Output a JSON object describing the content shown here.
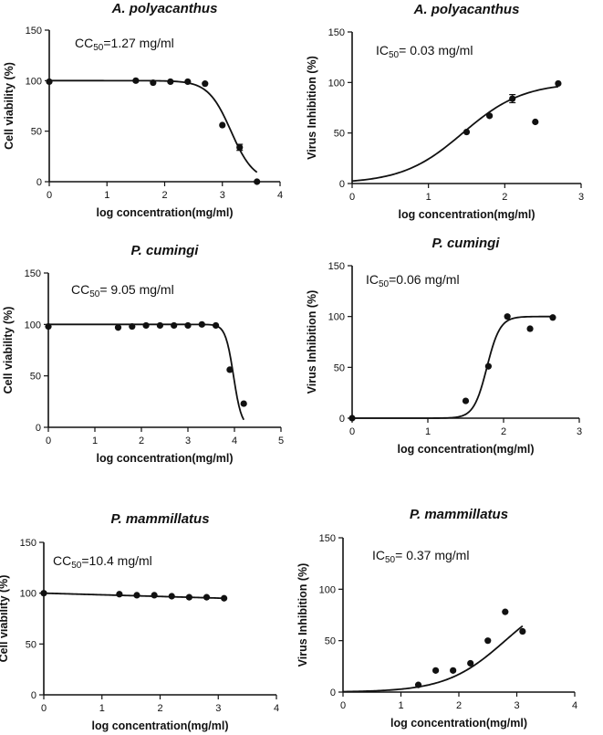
{
  "chart_data": [
    {
      "type": "scatter",
      "panel": "top-left",
      "title": "A. polyacanthus",
      "xlabel": "log concentration(mg/ml)",
      "ylabel": "Cell viability (%)",
      "xlim": [
        0,
        4
      ],
      "ylim": [
        0,
        150
      ],
      "xticks": [
        0,
        1,
        2,
        3,
        4
      ],
      "yticks": [
        0,
        50,
        100,
        150
      ],
      "annotation": {
        "prefix": "CC",
        "sub": "50",
        "text": "=1.27 mg/ml"
      },
      "points": [
        {
          "x": 0,
          "y": 99
        },
        {
          "x": 1.5,
          "y": 100
        },
        {
          "x": 1.8,
          "y": 98
        },
        {
          "x": 2.1,
          "y": 99
        },
        {
          "x": 2.4,
          "y": 99
        },
        {
          "x": 2.7,
          "y": 97
        },
        {
          "x": 3.0,
          "y": 56
        },
        {
          "x": 3.3,
          "y": 34,
          "err": 3
        },
        {
          "x": 3.6,
          "y": 0
        }
      ],
      "fit": {
        "model": "descending",
        "top": 100,
        "bottom": 0,
        "logx50": 3.15,
        "hill": 2.2,
        "xmin": 0,
        "xmax": 3.6
      }
    },
    {
      "type": "scatter",
      "panel": "top-right",
      "title": "A. polyacanthus",
      "xlabel": "log concentration(mg/ml)",
      "ylabel": "Virus Inhibition (%)",
      "xlim": [
        0,
        3
      ],
      "ylim": [
        0,
        150
      ],
      "xticks": [
        0,
        1,
        2,
        3
      ],
      "yticks": [
        0,
        50,
        100,
        150
      ],
      "annotation": {
        "prefix": "IC",
        "sub": "50",
        "text": "= 0.03 mg/ml"
      },
      "points": [
        {
          "x": 1.5,
          "y": 51
        },
        {
          "x": 1.8,
          "y": 67
        },
        {
          "x": 2.1,
          "y": 84,
          "err": 4
        },
        {
          "x": 2.4,
          "y": 61
        },
        {
          "x": 2.7,
          "y": 99
        }
      ],
      "fit": {
        "model": "ascending",
        "top": 100,
        "bottom": 0,
        "logx50": 1.45,
        "hill": 1.1,
        "xmin": 0,
        "xmax": 2.7
      }
    },
    {
      "type": "scatter",
      "panel": "middle-left",
      "title": "P. cumingi",
      "xlabel": "log concentration(mg/ml)",
      "ylabel": "Cell viability (%)",
      "xlim": [
        0,
        5
      ],
      "ylim": [
        0,
        150
      ],
      "xticks": [
        0,
        1,
        2,
        3,
        4,
        5
      ],
      "yticks": [
        0,
        50,
        100,
        150
      ],
      "annotation": {
        "prefix": "CC",
        "sub": "50",
        "text": "= 9.05 mg/ml"
      },
      "points": [
        {
          "x": 0,
          "y": 98
        },
        {
          "x": 1.5,
          "y": 97
        },
        {
          "x": 1.8,
          "y": 98
        },
        {
          "x": 2.1,
          "y": 99
        },
        {
          "x": 2.4,
          "y": 99
        },
        {
          "x": 2.7,
          "y": 99
        },
        {
          "x": 3.0,
          "y": 99
        },
        {
          "x": 3.3,
          "y": 100
        },
        {
          "x": 3.6,
          "y": 99
        },
        {
          "x": 3.9,
          "y": 56
        },
        {
          "x": 4.2,
          "y": 23
        }
      ],
      "fit": {
        "model": "descending",
        "top": 100,
        "bottom": 0,
        "logx50": 3.98,
        "hill": 5,
        "xmin": 0,
        "xmax": 4.2
      }
    },
    {
      "type": "scatter",
      "panel": "middle-right",
      "title": "P. cumingi",
      "xlabel": "log concentration(mg/ml)",
      "ylabel": "Virus Inhibition (%)",
      "xlim": [
        0,
        3
      ],
      "ylim": [
        0,
        150
      ],
      "xticks": [
        0,
        1,
        2,
        3
      ],
      "yticks": [
        0,
        50,
        100,
        150
      ],
      "annotation": {
        "prefix": "IC",
        "sub": "50",
        "text": "=0.06 mg/ml"
      },
      "points": [
        {
          "x": 0,
          "y": 0
        },
        {
          "x": 1.5,
          "y": 17
        },
        {
          "x": 1.8,
          "y": 51
        },
        {
          "x": 2.05,
          "y": 100
        },
        {
          "x": 2.35,
          "y": 88
        },
        {
          "x": 2.65,
          "y": 99
        }
      ],
      "fit": {
        "model": "ascending",
        "top": 100,
        "bottom": 0,
        "logx50": 1.78,
        "hill": 5,
        "xmin": 0,
        "xmax": 2.65
      }
    },
    {
      "type": "scatter",
      "panel": "bottom-left",
      "title": "P. mammillatus",
      "xlabel": "log concentration(mg/ml)",
      "ylabel": "Cell viability (%)",
      "xlim": [
        0,
        4
      ],
      "ylim": [
        0,
        150
      ],
      "xticks": [
        0,
        1,
        2,
        3,
        4
      ],
      "yticks": [
        0,
        50,
        100,
        150
      ],
      "annotation": {
        "prefix": "CC",
        "sub": "50",
        "text": "=10.4 mg/ml"
      },
      "points": [
        {
          "x": 0,
          "y": 100
        },
        {
          "x": 1.3,
          "y": 99
        },
        {
          "x": 1.6,
          "y": 98
        },
        {
          "x": 1.9,
          "y": 98
        },
        {
          "x": 2.2,
          "y": 97
        },
        {
          "x": 2.5,
          "y": 96
        },
        {
          "x": 2.8,
          "y": 96
        },
        {
          "x": 3.1,
          "y": 95
        }
      ],
      "fit": {
        "model": "linear",
        "y0": 100,
        "y1": 95,
        "xmin": 0,
        "xmax": 3.1
      }
    },
    {
      "type": "scatter",
      "panel": "bottom-right",
      "title": "P. mammillatus",
      "xlabel": "log concentration(mg/ml)",
      "ylabel": "Virus Inhibition (%)",
      "xlim": [
        0,
        4
      ],
      "ylim": [
        0,
        150
      ],
      "xticks": [
        0,
        1,
        2,
        3,
        4
      ],
      "yticks": [
        0,
        50,
        100,
        150
      ],
      "annotation": {
        "prefix": "IC",
        "sub": "50",
        "text": "= 0.37 mg/ml"
      },
      "points": [
        {
          "x": 1.3,
          "y": 7
        },
        {
          "x": 1.6,
          "y": 21
        },
        {
          "x": 1.9,
          "y": 21
        },
        {
          "x": 2.2,
          "y": 28
        },
        {
          "x": 2.5,
          "y": 50
        },
        {
          "x": 2.8,
          "y": 78
        },
        {
          "x": 3.1,
          "y": 59
        }
      ],
      "fit": {
        "model": "ascending",
        "top": 100,
        "bottom": 0,
        "logx50": 2.8,
        "hill": 0.85,
        "xmin": 0,
        "xmax": 3.1
      }
    }
  ]
}
